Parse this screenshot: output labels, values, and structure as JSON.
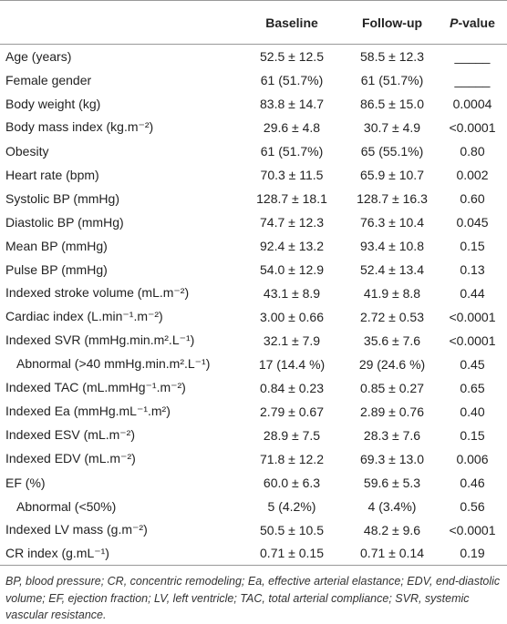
{
  "table": {
    "header": [
      "",
      "Baseline",
      "Follow-up",
      "P-value"
    ],
    "rows": [
      [
        "Age (years)",
        "52.5 ± 12.5",
        "58.5 ± 12.3",
        "_____"
      ],
      [
        "Female gender",
        "61 (51.7%)",
        "61 (51.7%)",
        "_____"
      ],
      [
        "Body weight (kg)",
        "83.8 ± 14.7",
        "86.5 ± 15.0",
        "0.0004"
      ],
      [
        "Body mass index (kg.m⁻²)",
        "29.6 ± 4.8",
        "30.7 ± 4.9",
        "<0.0001"
      ],
      [
        "Obesity",
        "61 (51.7%)",
        "65 (55.1%)",
        "0.80"
      ],
      [
        "Heart rate (bpm)",
        "70.3 ± 11.5",
        "65.9 ± 10.7",
        "0.002"
      ],
      [
        "Systolic BP (mmHg)",
        "128.7 ± 18.1",
        "128.7 ± 16.3",
        "0.60"
      ],
      [
        "Diastolic BP (mmHg)",
        "74.7 ± 12.3",
        "76.3 ± 10.4",
        "0.045"
      ],
      [
        "Mean BP (mmHg)",
        "92.4 ± 13.2",
        "93.4 ± 10.8",
        "0.15"
      ],
      [
        "Pulse BP (mmHg)",
        "54.0 ± 12.9",
        "52.4 ± 13.4",
        "0.13"
      ],
      [
        "Indexed stroke volume (mL.m⁻²)",
        "43.1 ± 8.9",
        "41.9 ± 8.8",
        "0.44"
      ],
      [
        "Cardiac index (L.min⁻¹.m⁻²)",
        "3.00 ± 0.66",
        "2.72 ± 0.53",
        "<0.0001"
      ],
      [
        "Indexed SVR (mmHg.min.m².L⁻¹)",
        "32.1 ± 7.9",
        "35.6 ± 7.6",
        "<0.0001"
      ],
      [
        "Abnormal (>40 mmHg.min.m².L⁻¹)",
        "17 (14.4 %)",
        "29 (24.6 %)",
        "0.45"
      ],
      [
        "Indexed TAC (mL.mmHg⁻¹.m⁻²)",
        "0.84 ± 0.23",
        "0.85 ± 0.27",
        "0.65"
      ],
      [
        "Indexed Ea (mmHg.mL⁻¹.m²)",
        "2.79 ± 0.67",
        "2.89 ± 0.76",
        "0.40"
      ],
      [
        "Indexed ESV (mL.m⁻²)",
        "28.9 ± 7.5",
        "28.3 ± 7.6",
        "0.15"
      ],
      [
        "Indexed EDV (mL.m⁻²)",
        "71.8 ± 12.2",
        "69.3 ± 13.0",
        "0.006"
      ],
      [
        "EF (%)",
        "60.0 ± 6.3",
        "59.6 ± 5.3",
        "0.46"
      ],
      [
        "Abnormal (<50%)",
        "5 (4.2%)",
        "4 (3.4%)",
        "0.56"
      ],
      [
        "Indexed LV mass (g.m⁻²)",
        "50.5 ± 10.5",
        "48.2 ± 9.6",
        "<0.0001"
      ],
      [
        "CR index (g.mL⁻¹)",
        "0.71 ± 0.15",
        "0.71 ± 0.14",
        "0.19"
      ]
    ],
    "footnote": "BP, blood pressure; CR, concentric remodeling; Ea, effective arterial elastance; EDV, end-diastolic volume; EF, ejection fraction; LV, left ventricle; TAC, total arterial compliance; SVR, systemic vascular resistance."
  }
}
